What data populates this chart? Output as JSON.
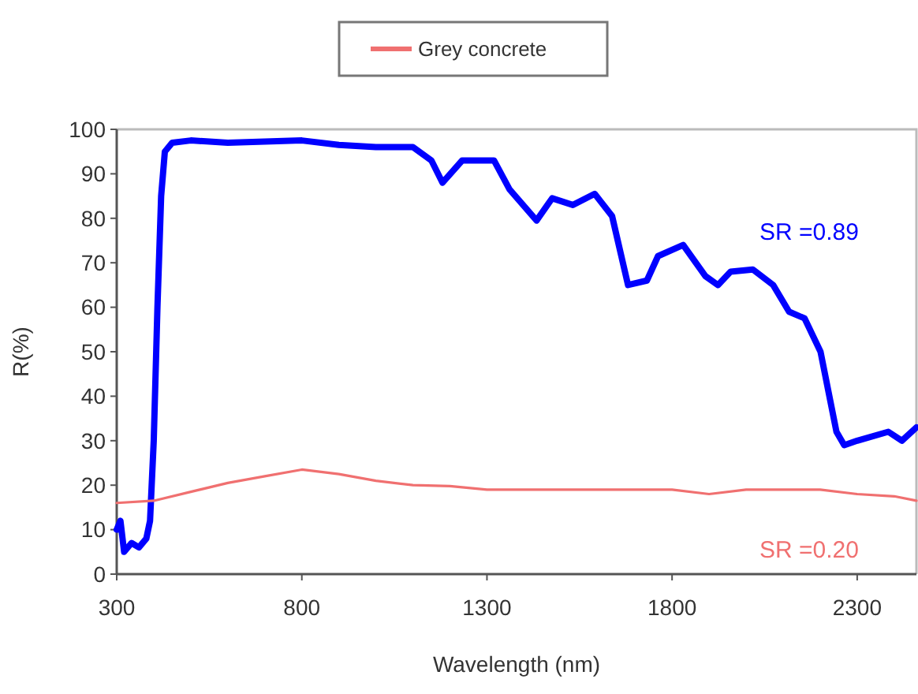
{
  "chart_data": {
    "type": "line",
    "xlabel": "Wavelength (nm)",
    "ylabel": "R(%)",
    "xlim": [
      300,
      2460
    ],
    "xticks": [
      300,
      800,
      1300,
      1800,
      2300
    ],
    "ylim": [
      0,
      100
    ],
    "yticks": [
      0,
      10,
      20,
      30,
      40,
      50,
      60,
      70,
      80,
      90,
      100
    ],
    "grid": false,
    "legend": "top",
    "line_style": "solid",
    "series": [
      {
        "color": "#0000ff",
        "x": [
          300,
          310,
          320,
          340,
          360,
          380,
          390,
          400,
          410,
          420,
          430,
          450,
          500,
          600,
          800,
          900,
          1000,
          1100,
          1150,
          1180,
          1233,
          1280,
          1319,
          1361,
          1434,
          1476,
          1532,
          1591,
          1638,
          1681,
          1732,
          1762,
          1830,
          1890,
          1924,
          1958,
          2018,
          2073,
          2116,
          2158,
          2201,
          2244,
          2265,
          2300,
          2384,
          2421,
          2460
        ],
        "values": [
          10,
          12,
          5,
          7,
          6,
          8,
          12,
          30,
          60,
          85,
          95,
          97,
          97.5,
          97,
          97.5,
          96.5,
          96,
          96,
          93,
          88,
          93,
          93,
          93,
          86.5,
          79.5,
          84.5,
          83,
          85.5,
          80.5,
          65,
          66,
          71.5,
          74,
          67,
          65,
          68,
          68.5,
          65,
          59,
          57.5,
          50,
          32,
          29,
          30,
          32,
          30,
          33
        ]
      },
      {
        "name": "Grey concrete",
        "color": "#f07070",
        "x": [
          300,
          400,
          500,
          600,
          700,
          800,
          900,
          1000,
          1100,
          1200,
          1300,
          1400,
          1600,
          1800,
          1900,
          2000,
          2100,
          2200,
          2300,
          2400,
          2460
        ],
        "values": [
          16,
          16.5,
          18.5,
          20.5,
          22,
          23.5,
          22.5,
          21,
          20,
          19.8,
          19,
          19,
          19,
          19,
          18,
          19,
          19,
          19,
          18,
          17.5,
          16.5
        ]
      }
    ],
    "annotations": [
      "SR =0.89",
      "SR =0.20"
    ]
  }
}
